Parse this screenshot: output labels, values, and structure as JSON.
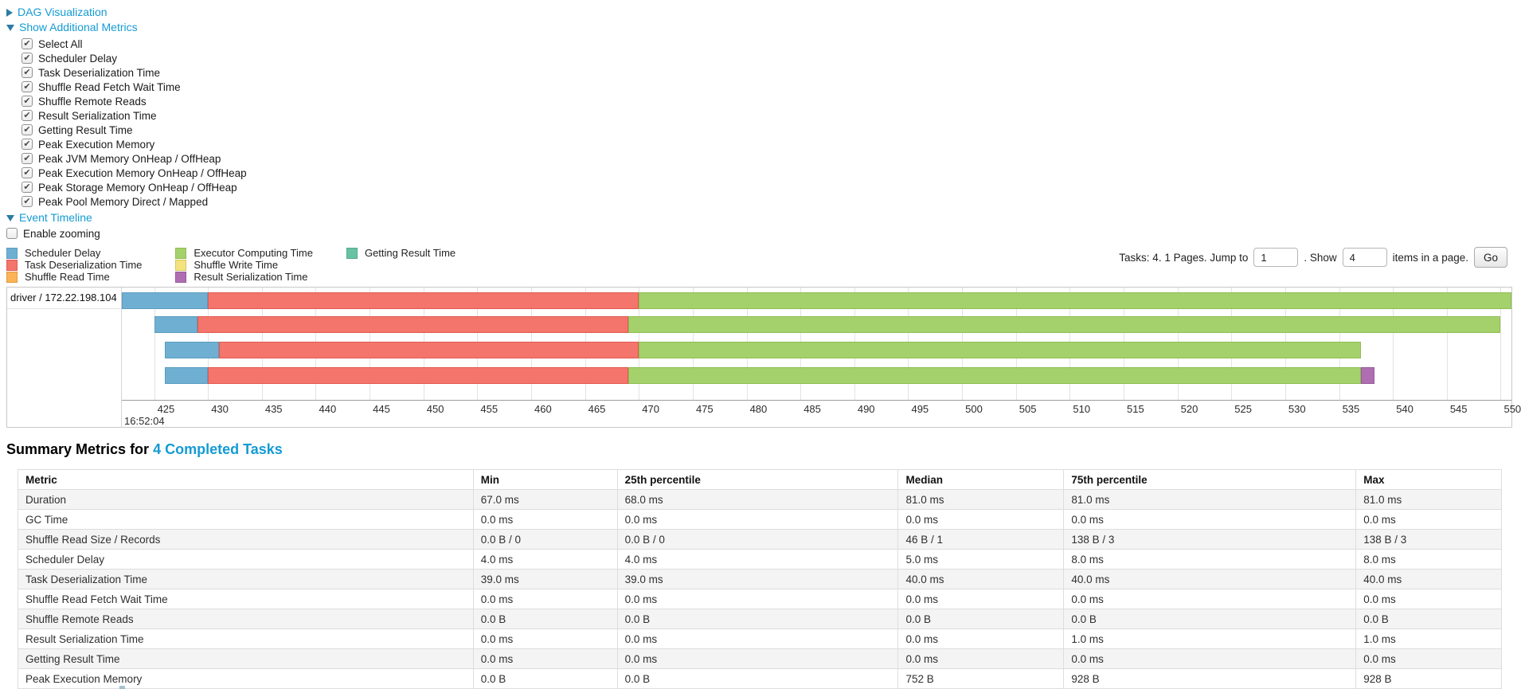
{
  "controls": {
    "dag_label": "DAG Visualization",
    "metrics_label": "Show Additional Metrics",
    "checkboxes": [
      {
        "label": "Select All",
        "checked": true
      },
      {
        "label": "Scheduler Delay",
        "checked": true
      },
      {
        "label": "Task Deserialization Time",
        "checked": true
      },
      {
        "label": "Shuffle Read Fetch Wait Time",
        "checked": true
      },
      {
        "label": "Shuffle Remote Reads",
        "checked": true
      },
      {
        "label": "Result Serialization Time",
        "checked": true
      },
      {
        "label": "Getting Result Time",
        "checked": true
      },
      {
        "label": "Peak Execution Memory",
        "checked": true
      },
      {
        "label": "Peak JVM Memory OnHeap / OffHeap",
        "checked": true
      },
      {
        "label": "Peak Execution Memory OnHeap / OffHeap",
        "checked": true
      },
      {
        "label": "Peak Storage Memory OnHeap / OffHeap",
        "checked": true
      },
      {
        "label": "Peak Pool Memory Direct / Mapped",
        "checked": true
      }
    ],
    "event_timeline_label": "Event Timeline",
    "enable_zooming": {
      "label": "Enable zooming",
      "checked": false
    }
  },
  "pagination": {
    "prefix": "Tasks: 4. 1 Pages. Jump to",
    "jump_value": "1",
    "mid": ". Show",
    "show_value": "4",
    "suffix": "items in a page.",
    "go_label": "Go"
  },
  "chart_data": {
    "type": "timeline-gantt",
    "group_label": "driver / 172.22.198.104",
    "axis": {
      "start": 422,
      "end": 551,
      "tick_start": 425,
      "tick_end": 550,
      "tick_step": 5,
      "unit": "ms within second",
      "base_time_label": "16:52:04"
    },
    "series": {
      "scheduler_delay": {
        "label": "Scheduler Delay",
        "color": "#6fb0d2",
        "border": "#5a9cc0"
      },
      "task_deserialization": {
        "label": "Task Deserialization Time",
        "color": "#f4756c",
        "border": "#e05a51"
      },
      "shuffle_read": {
        "label": "Shuffle Read Time",
        "color": "#fbb357",
        "border": "#e29a3f"
      },
      "executor_computing": {
        "label": "Executor Computing Time",
        "color": "#a5d16c",
        "border": "#8fbd52"
      },
      "shuffle_write": {
        "label": "Shuffle Write Time",
        "color": "#f3e27e",
        "border": "#d9c75f"
      },
      "result_serialization": {
        "label": "Result Serialization Time",
        "color": "#af6eb2",
        "border": "#985a9b"
      },
      "getting_result": {
        "label": "Getting Result Time",
        "color": "#67c2a3",
        "border": "#52ab8c"
      }
    },
    "legend_columns": [
      [
        "scheduler_delay",
        "task_deserialization",
        "shuffle_read"
      ],
      [
        "executor_computing",
        "shuffle_write",
        "result_serialization"
      ],
      [
        "getting_result"
      ]
    ],
    "tasks": [
      {
        "segments": [
          {
            "name": "scheduler_delay",
            "start": 422,
            "end": 430
          },
          {
            "name": "task_deserialization",
            "start": 430,
            "end": 470
          },
          {
            "name": "executor_computing",
            "start": 470,
            "end": 551
          }
        ]
      },
      {
        "segments": [
          {
            "name": "scheduler_delay",
            "start": 425,
            "end": 429
          },
          {
            "name": "task_deserialization",
            "start": 429,
            "end": 469
          },
          {
            "name": "executor_computing",
            "start": 469,
            "end": 550
          }
        ]
      },
      {
        "segments": [
          {
            "name": "scheduler_delay",
            "start": 426,
            "end": 431
          },
          {
            "name": "task_deserialization",
            "start": 431,
            "end": 470
          },
          {
            "name": "executor_computing",
            "start": 470,
            "end": 537
          }
        ]
      },
      {
        "segments": [
          {
            "name": "scheduler_delay",
            "start": 426,
            "end": 430
          },
          {
            "name": "task_deserialization",
            "start": 430,
            "end": 469
          },
          {
            "name": "executor_computing",
            "start": 469,
            "end": 537
          },
          {
            "name": "result_serialization",
            "start": 537,
            "end": 538.3
          }
        ]
      }
    ]
  },
  "summary": {
    "title_prefix": "Summary Metrics for ",
    "title_link": "4 Completed Tasks",
    "columns": [
      "Metric",
      "Min",
      "25th percentile",
      "Median",
      "75th percentile",
      "Max"
    ],
    "col_widths_pct": [
      30.69,
      9.71,
      18.94,
      11.16,
      19.69,
      9.81
    ],
    "rows": [
      [
        "Duration",
        "67.0 ms",
        "68.0 ms",
        "81.0 ms",
        "81.0 ms",
        "81.0 ms"
      ],
      [
        "GC Time",
        "0.0 ms",
        "0.0 ms",
        "0.0 ms",
        "0.0 ms",
        "0.0 ms"
      ],
      [
        "Shuffle Read Size / Records",
        "0.0 B / 0",
        "0.0 B / 0",
        "46 B / 1",
        "138 B / 3",
        "138 B / 3"
      ],
      [
        "Scheduler Delay",
        "4.0 ms",
        "4.0 ms",
        "5.0 ms",
        "8.0 ms",
        "8.0 ms"
      ],
      [
        "Task Deserialization Time",
        "39.0 ms",
        "39.0 ms",
        "40.0 ms",
        "40.0 ms",
        "40.0 ms"
      ],
      [
        "Shuffle Read Fetch Wait Time",
        "0.0 ms",
        "0.0 ms",
        "0.0 ms",
        "0.0 ms",
        "0.0 ms"
      ],
      [
        "Shuffle Remote Reads",
        "0.0 B",
        "0.0 B",
        "0.0 B",
        "0.0 B",
        "0.0 B"
      ],
      [
        "Result Serialization Time",
        "0.0 ms",
        "0.0 ms",
        "0.0 ms",
        "1.0 ms",
        "1.0 ms"
      ],
      [
        "Getting Result Time",
        "0.0 ms",
        "0.0 ms",
        "0.0 ms",
        "0.0 ms",
        "0.0 ms"
      ],
      [
        "Peak Execution Memory",
        "0.0 B",
        "0.0 B",
        "752 B",
        "928 B",
        "928 B"
      ]
    ]
  }
}
